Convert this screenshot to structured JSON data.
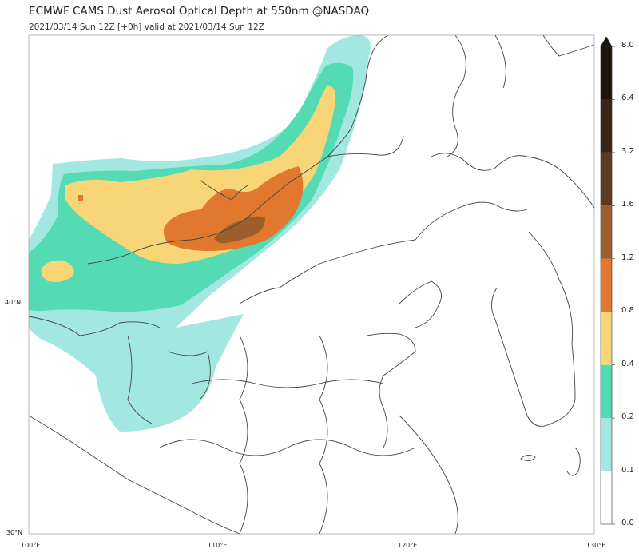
{
  "title": "ECMWF CAMS Dust Aerosol Optical Depth at 550nm @NASDAQ",
  "subtitle": "2021/03/14 Sun 12Z [+0h] valid at 2021/03/14 Sun 12Z",
  "axes": {
    "lat_labels": [
      "40°N",
      "30°N"
    ],
    "lon_labels": [
      "100°E",
      "110°E",
      "120°E",
      "130°E"
    ]
  },
  "colorbar": {
    "ticks": [
      "0.0",
      "0.1",
      "0.2",
      "0.4",
      "0.8",
      "1.2",
      "1.6",
      "3.2",
      "6.4",
      "8.0"
    ],
    "colors": [
      "#ffffff",
      "#a2e8e0",
      "#54dbb4",
      "#f8d577",
      "#e2782e",
      "#9e5e2b",
      "#5e3a1e",
      "#3a2414",
      "#1d140c"
    ]
  }
}
